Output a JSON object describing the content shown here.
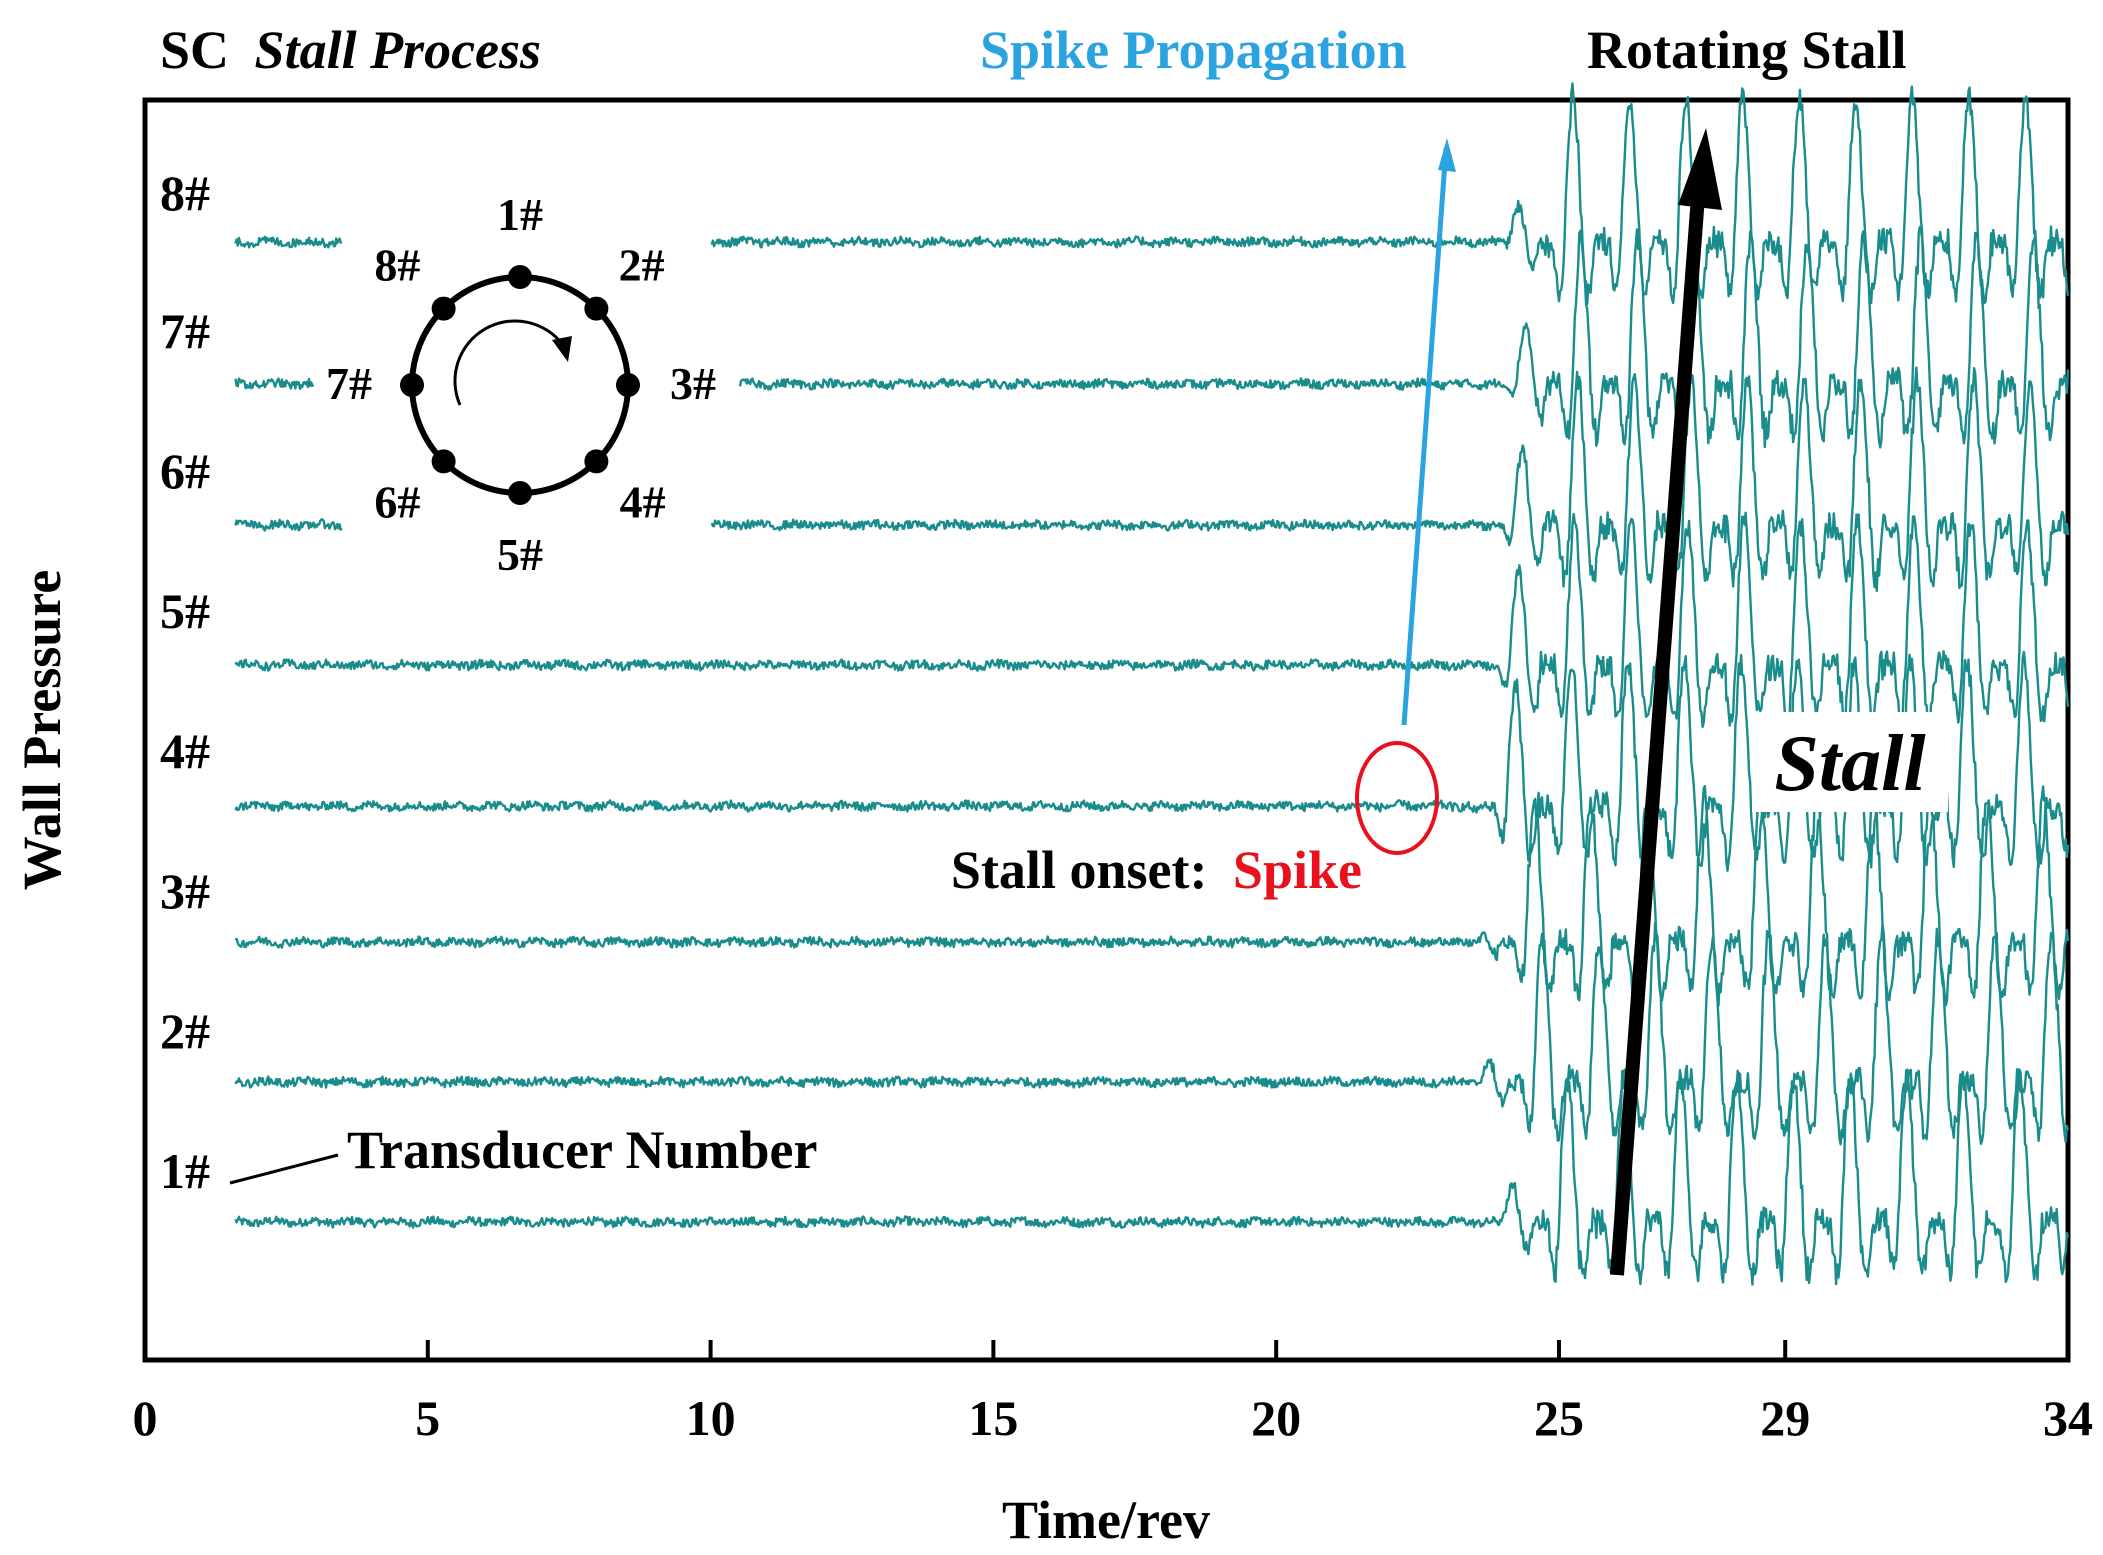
{
  "chart_data": {
    "type": "line",
    "title": {
      "prefix": "SC",
      "emphasis": "Stall Process"
    },
    "xlabel": "Time/rev",
    "ylabel": "Wall Pressure",
    "xlim": [
      0,
      34
    ],
    "x_ticks": [
      {
        "value": 0,
        "label": "0"
      },
      {
        "value": 5,
        "label": "5"
      },
      {
        "value": 10,
        "label": "10"
      },
      {
        "value": 15,
        "label": "15"
      },
      {
        "value": 20,
        "label": "20"
      },
      {
        "value": 25,
        "label": "25"
      },
      {
        "value": 29,
        "label": "29"
      },
      {
        "value": 34,
        "label": "34"
      }
    ],
    "series": [
      {
        "name": "1#",
        "onset": 23.9,
        "phase": 0.0
      },
      {
        "name": "2#",
        "onset": 23.6,
        "phase": 0.9
      },
      {
        "name": "3#",
        "onset": 23.6,
        "phase": 1.8
      },
      {
        "name": "4#",
        "onset": 23.4,
        "phase": 2.7
      },
      {
        "name": "5#",
        "onset": 23.6,
        "phase": 3.6
      },
      {
        "name": "6#",
        "onset": 23.8,
        "phase": 4.5
      },
      {
        "name": "7#",
        "onset": 24.0,
        "phase": 5.4
      },
      {
        "name": "8#",
        "onset": 24.0,
        "phase": 6.3
      }
    ],
    "baseline_noise_amplitude": 0.06,
    "stall_amplitude": 1.3,
    "stall_period_rev": 1.0,
    "trace_color": "#1a8c8c",
    "inset": {
      "title": "transducer ring",
      "labels": [
        "1#",
        "2#",
        "3#",
        "4#",
        "5#",
        "6#",
        "7#",
        "8#"
      ]
    },
    "annotations": {
      "spike_propagation": "Spike Propagation",
      "rotating_stall": "Rotating Stall",
      "stall": "Stall",
      "stall_onset_prefix": "Stall onset:",
      "stall_onset_spike": "Spike",
      "transducer_number": "Transducer Number"
    },
    "colors": {
      "blue": "#2aa3e0",
      "red": "#e8111d",
      "black": "#000000"
    }
  }
}
